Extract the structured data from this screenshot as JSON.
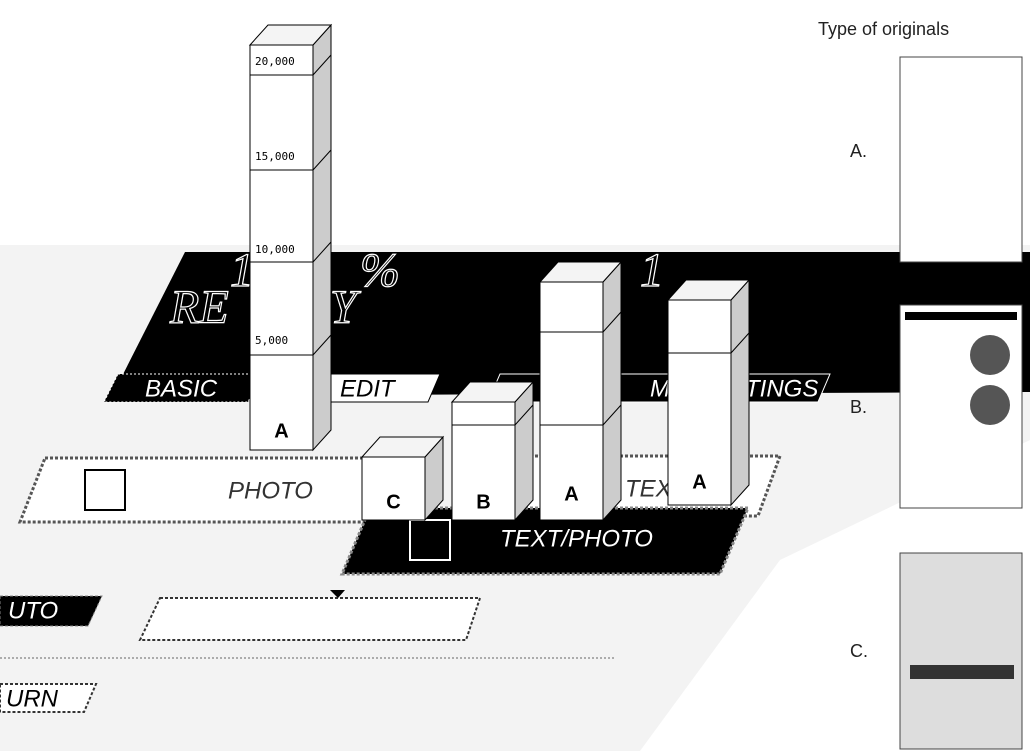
{
  "scale_labels": [
    "20,000",
    "15,000",
    "10,000",
    "5,000"
  ],
  "bars": [
    {
      "label": "A"
    },
    {
      "label": "C"
    },
    {
      "label": "B"
    },
    {
      "label": "A"
    },
    {
      "label": "A"
    }
  ],
  "panel": {
    "display": [
      "1",
      "%",
      "1",
      "RE",
      "Y"
    ],
    "tabs": [
      "BASIC",
      "EDIT",
      "M",
      "TINGS"
    ],
    "modes": [
      "PHOTO",
      "TEXT",
      "TEXT/PHOTO"
    ],
    "controls": [
      "UTO",
      "URN"
    ]
  },
  "legend": {
    "title": "Type of originals",
    "items": [
      "A.",
      "B.",
      "C."
    ]
  }
}
